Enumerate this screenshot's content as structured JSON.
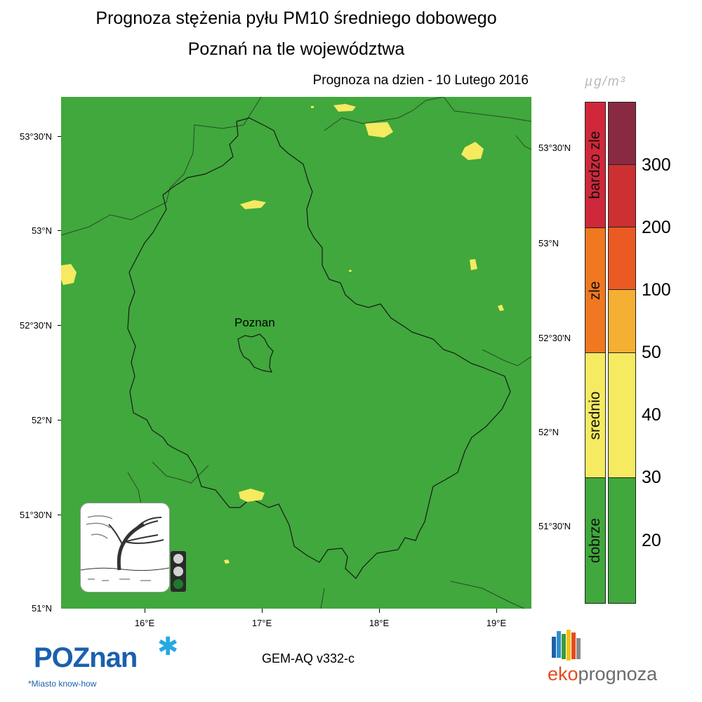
{
  "header": {
    "title_line1": "Prognoza stężenia pyłu PM10 średniego dobowego",
    "title_line2": "Poznań na tle województwa",
    "forecast_date": "Prognoza na dzien -  10 Lutego 2016"
  },
  "map": {
    "city_label": "Poznan",
    "background_color": "#40a83c",
    "lat_labels": [
      "53°30'N",
      "53°N",
      "52°30'N",
      "52°N",
      "51°30'N",
      "51°N"
    ],
    "lon_labels": [
      "16°E",
      "17°E",
      "18°E",
      "19°E"
    ]
  },
  "legend": {
    "unit": "µg/m³",
    "categories": [
      {
        "label": "bardzo zle",
        "color": "#d0283a"
      },
      {
        "label": "zle",
        "color": "#f07820"
      },
      {
        "label": "srednio",
        "color": "#f5ea60"
      },
      {
        "label": "dobrze",
        "color": "#40a83c"
      }
    ],
    "levels": [
      {
        "value": "300",
        "color": "#8a2a42"
      },
      {
        "value": "200",
        "color": "#cc3030"
      },
      {
        "value": "100",
        "color": "#ec5a24"
      },
      {
        "value": "50",
        "color": "#f5b033"
      },
      {
        "value": "40",
        "color": "#f5ea60"
      },
      {
        "value": "30",
        "color": "#f5ea60"
      },
      {
        "value": "20",
        "color": "#40a83c"
      }
    ]
  },
  "footer": {
    "logo_text": "POZnan",
    "logo_slogan": "*Miasto know-how",
    "model_version": "GEM-AQ v332-c",
    "brand_eko": "eko",
    "brand_prognoza": "prognoza"
  }
}
